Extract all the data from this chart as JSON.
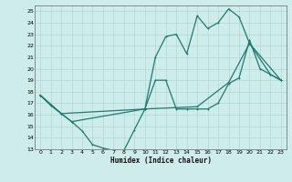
{
  "xlabel": "Humidex (Indice chaleur)",
  "bg_color": "#ceecea",
  "grid_color": "#aed8d5",
  "line_color": "#1e7b6e",
  "xlim": [
    -0.5,
    23.5
  ],
  "ylim": [
    13,
    25.5
  ],
  "xticks": [
    0,
    1,
    2,
    3,
    4,
    5,
    6,
    7,
    8,
    9,
    10,
    11,
    12,
    13,
    14,
    15,
    16,
    17,
    18,
    19,
    20,
    21,
    22,
    23
  ],
  "yticks": [
    13,
    14,
    15,
    16,
    17,
    18,
    19,
    20,
    21,
    22,
    23,
    24,
    25
  ],
  "line1_x": [
    0,
    1,
    2,
    3,
    4,
    5,
    6,
    7,
    8,
    9,
    10,
    11,
    12,
    13,
    14,
    15,
    16,
    17,
    18,
    19,
    20,
    21,
    22,
    23
  ],
  "line1_y": [
    17.7,
    16.8,
    16.1,
    15.4,
    14.6,
    13.4,
    13.1,
    12.9,
    12.9,
    14.7,
    16.5,
    19.0,
    19.0,
    16.5,
    16.5,
    16.5,
    16.5,
    17.0,
    18.7,
    19.2,
    22.5,
    20.0,
    19.5,
    19.0
  ],
  "line2_x": [
    0,
    2,
    3,
    10,
    11,
    12,
    13,
    14,
    15,
    16,
    17,
    18,
    19,
    20,
    22,
    23
  ],
  "line2_y": [
    17.7,
    16.1,
    15.4,
    16.5,
    21.0,
    22.8,
    23.0,
    21.3,
    24.6,
    23.5,
    24.0,
    25.2,
    24.5,
    22.2,
    19.5,
    19.0
  ],
  "line3_x": [
    0,
    2,
    10,
    15,
    18,
    20,
    23
  ],
  "line3_y": [
    17.7,
    16.1,
    16.5,
    16.7,
    18.8,
    22.2,
    19.0
  ]
}
